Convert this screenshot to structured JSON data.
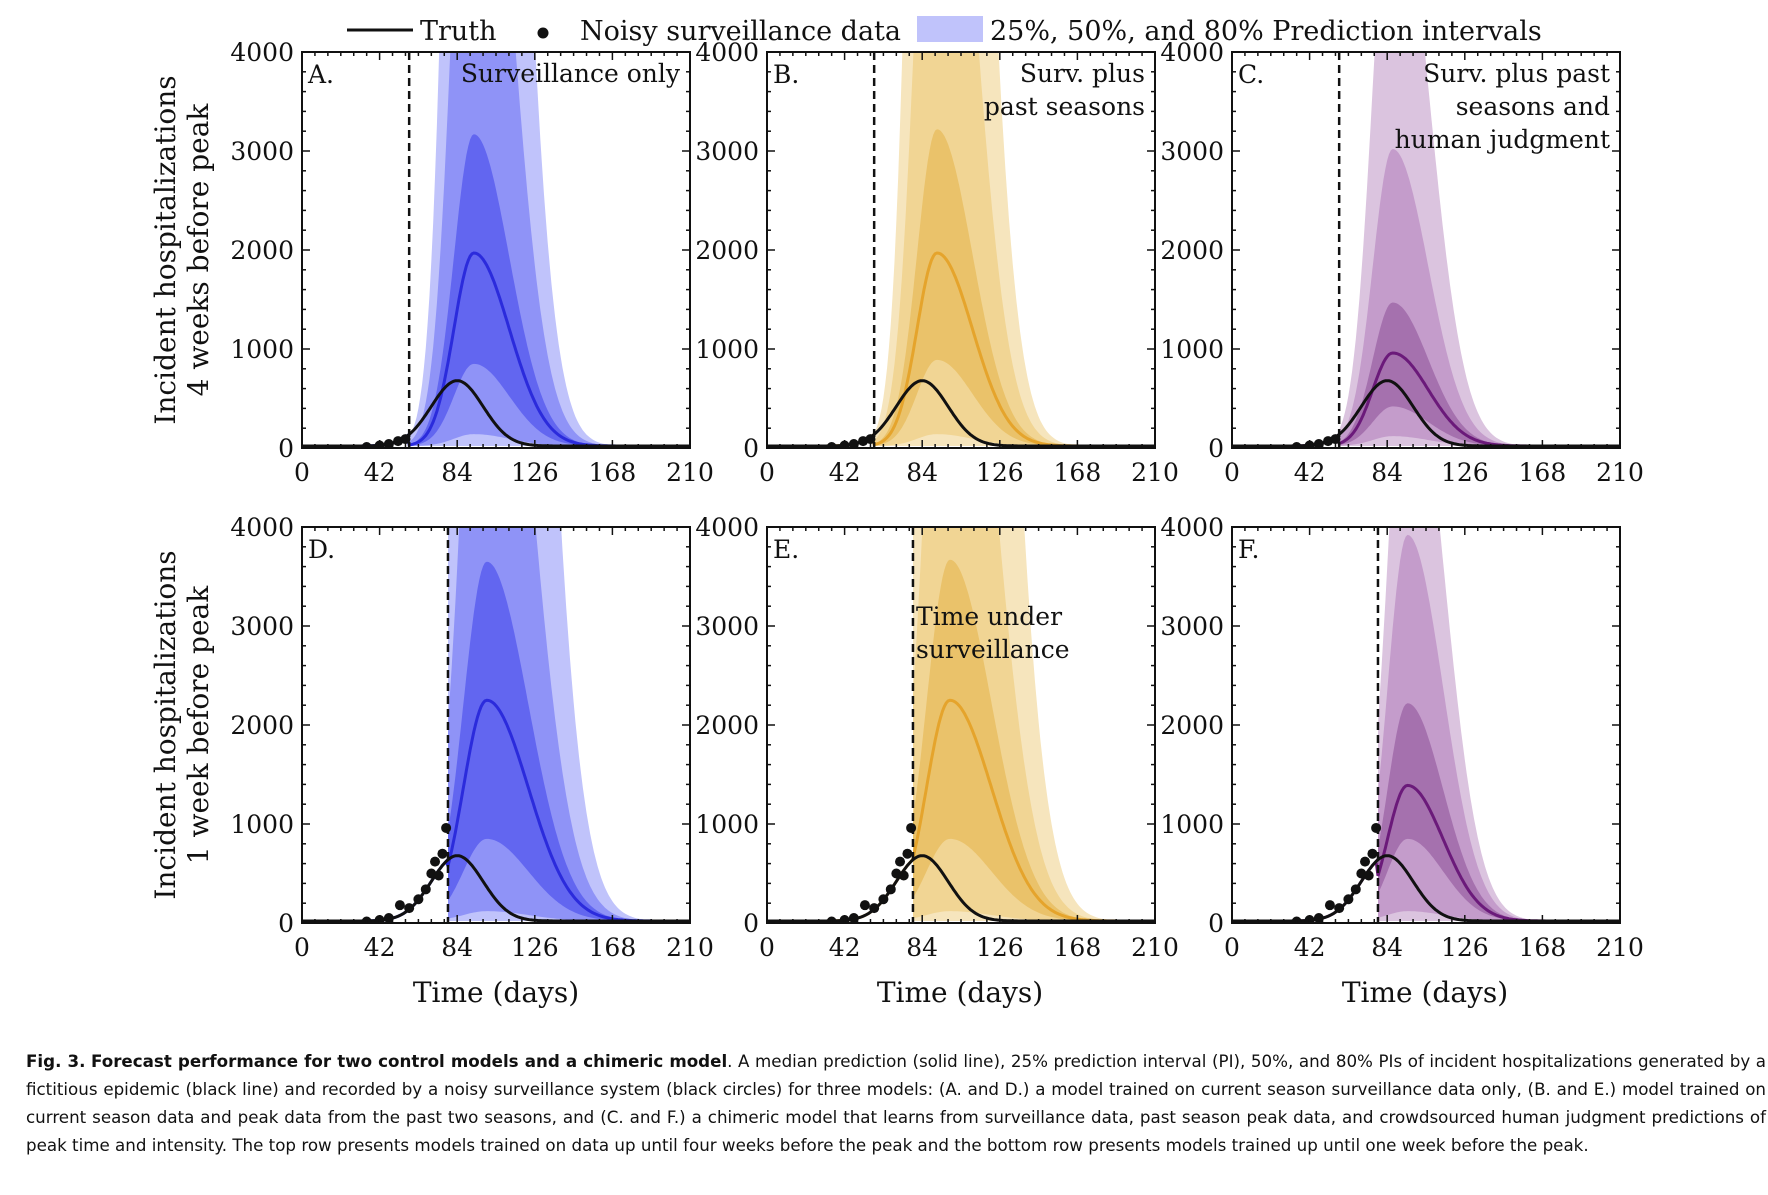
{
  "legend": {
    "truth": "Truth",
    "surveillance": "Noisy surveillance data",
    "intervals": "25%, 50%, and 80% Prediction intervals"
  },
  "ylabels": {
    "row1": [
      "Incident hospitalizations",
      "4 weeks before peak"
    ],
    "row2": [
      "Incident hospitalizations",
      "1 week before peak"
    ]
  },
  "xlabel": "Time (days)",
  "caption": {
    "label": "Fig. 3.",
    "title": "Forecast performance for two control models and a chimeric model",
    "body": ". A median prediction (solid line), 25% prediction interval (PI), 50%, and 80% PIs of incident hospitalizations generated by a fictitious epidemic (black line) and recorded by a noisy surveillance system (black circles) for three models: (A. and D.) a model trained on current season surveillance data only, (B. and E.) model trained on current season data and peak data from the past two seasons, and (C. and F.) a chimeric model that learns from surveillance data, past season peak data, and crowdsourced human judgment predictions of peak time and intensity. The top row presents models trained on data up until four weeks before the peak and the bottom row presents models trained up until one week before the peak."
  },
  "chart_data": {
    "type": "line",
    "xlim": [
      0,
      210
    ],
    "ylim": [
      0,
      4000
    ],
    "xticks": [
      0,
      42,
      84,
      126,
      168,
      210
    ],
    "yticks": [
      0,
      1000,
      2000,
      3000,
      4000
    ],
    "grid": false,
    "legend_position": "top-center",
    "truth": {
      "peak_day": 84,
      "peak_value": 660,
      "width_days": 14
    },
    "panels": [
      {
        "id": "A",
        "label": "A.",
        "annotation": [
          "Surveillance only"
        ],
        "color": "#2b2bdc",
        "bands": [
          "#c0c3fb",
          "#8f93f7",
          "#6266f0"
        ],
        "cutoff_day": 58,
        "median": {
          "peak_day": 93,
          "peak_value": 1950,
          "width_days": 12
        },
        "pi25": {
          "upper": 3150,
          "lower": 830
        },
        "pi50": {
          "upper": 8000,
          "lower": 120
        },
        "pi80": {
          "upper": 18000,
          "lower": 0
        },
        "surveillance_points": [
          [
            35,
            10
          ],
          [
            42,
            25
          ],
          [
            47,
            40
          ],
          [
            52,
            70
          ],
          [
            56,
            90
          ]
        ]
      },
      {
        "id": "B",
        "label": "B.",
        "annotation": [
          "Surv. plus",
          "past seasons"
        ],
        "color": "#e5a42c",
        "bands": [
          "#f6e5bd",
          "#f1d594",
          "#eac26a"
        ],
        "cutoff_day": 58,
        "median": {
          "peak_day": 92,
          "peak_value": 1950,
          "width_days": 12
        },
        "pi25": {
          "upper": 3200,
          "lower": 870
        },
        "pi50": {
          "upper": 8000,
          "lower": 120
        },
        "pi80": {
          "upper": 18000,
          "lower": 0
        },
        "surveillance_points": [
          [
            35,
            10
          ],
          [
            42,
            25
          ],
          [
            47,
            40
          ],
          [
            52,
            70
          ],
          [
            56,
            90
          ]
        ]
      },
      {
        "id": "C",
        "label": "C.",
        "annotation": [
          "Surv. plus past",
          "seasons and",
          "human judgment"
        ],
        "color": "#6b1a7a",
        "bands": [
          "#dbc4df",
          "#c49ccb",
          "#a571ae"
        ],
        "cutoff_day": 58,
        "median": {
          "peak_day": 87,
          "peak_value": 940,
          "width_days": 12
        },
        "pi25": {
          "upper": 1450,
          "lower": 400
        },
        "pi50": {
          "upper": 3000,
          "lower": 100
        },
        "pi80": {
          "upper": 6000,
          "lower": 0
        },
        "surveillance_points": [
          [
            35,
            10
          ],
          [
            42,
            25
          ],
          [
            47,
            40
          ],
          [
            52,
            70
          ],
          [
            56,
            90
          ]
        ]
      },
      {
        "id": "D",
        "label": "D.",
        "annotation": [],
        "color": "#2b2bdc",
        "bands": [
          "#c0c3fb",
          "#8f93f7",
          "#6266f0"
        ],
        "cutoff_day": 79,
        "median": {
          "peak_day": 100,
          "peak_value": 2230,
          "width_days": 14
        },
        "pi25": {
          "upper": 3630,
          "lower": 830
        },
        "pi50": {
          "upper": 8000,
          "lower": 100
        },
        "pi80": {
          "upper": 20000,
          "lower": 0
        },
        "surveillance_points": [
          [
            35,
            15
          ],
          [
            42,
            30
          ],
          [
            47,
            50
          ],
          [
            53,
            180
          ],
          [
            58,
            150
          ],
          [
            63,
            240
          ],
          [
            67,
            340
          ],
          [
            70,
            500
          ],
          [
            72,
            620
          ],
          [
            74,
            480
          ],
          [
            76,
            700
          ],
          [
            78,
            960
          ]
        ]
      },
      {
        "id": "E",
        "label": "E.",
        "annotation": [],
        "color": "#e5a42c",
        "bands": [
          "#f6e5bd",
          "#f1d594",
          "#eac26a"
        ],
        "cutoff_day": 79,
        "median": {
          "peak_day": 99,
          "peak_value": 2230,
          "width_days": 14
        },
        "pi25": {
          "upper": 3650,
          "lower": 830
        },
        "pi50": {
          "upper": 8000,
          "lower": 100
        },
        "pi80": {
          "upper": 20000,
          "lower": 0
        },
        "surveillance_points": [
          [
            35,
            15
          ],
          [
            42,
            30
          ],
          [
            47,
            50
          ],
          [
            53,
            180
          ],
          [
            58,
            150
          ],
          [
            63,
            240
          ],
          [
            67,
            340
          ],
          [
            70,
            500
          ],
          [
            72,
            620
          ],
          [
            74,
            480
          ],
          [
            76,
            700
          ],
          [
            78,
            960
          ]
        ],
        "annotation_text": [
          "Time under",
          "surveillance"
        ]
      },
      {
        "id": "F",
        "label": "F.",
        "annotation": [],
        "color": "#6b1a7a",
        "bands": [
          "#dbc4df",
          "#c49ccb",
          "#a571ae"
        ],
        "cutoff_day": 79,
        "median": {
          "peak_day": 95,
          "peak_value": 1370,
          "width_days": 12
        },
        "pi25": {
          "upper": 2200,
          "lower": 830
        },
        "pi50": {
          "upper": 3900,
          "lower": 100
        },
        "pi80": {
          "upper": 6000,
          "lower": 0
        },
        "surveillance_points": [
          [
            35,
            15
          ],
          [
            42,
            30
          ],
          [
            47,
            50
          ],
          [
            53,
            180
          ],
          [
            58,
            150
          ],
          [
            63,
            240
          ],
          [
            67,
            340
          ],
          [
            70,
            500
          ],
          [
            72,
            620
          ],
          [
            74,
            480
          ],
          [
            76,
            700
          ],
          [
            78,
            960
          ]
        ]
      }
    ]
  }
}
